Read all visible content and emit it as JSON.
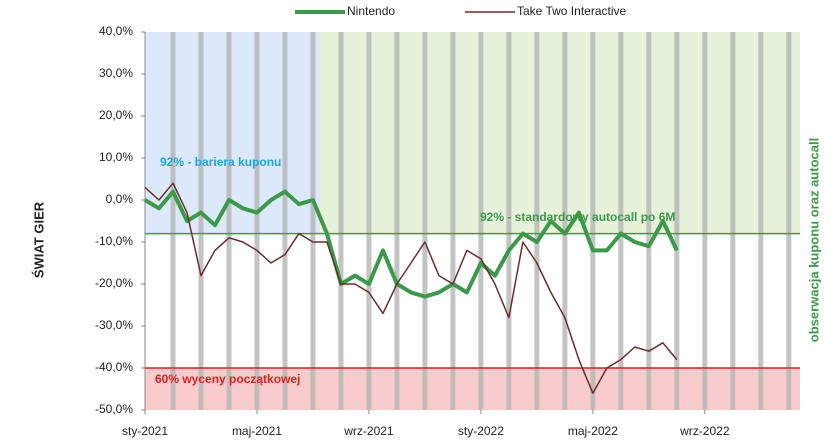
{
  "chart_data": {
    "type": "line",
    "y_axis_label": "ŚWIAT GIER",
    "y2_axis_label": "obserwacja kuponu oraz autocall",
    "annotations": [
      "92% - bariera kuponu",
      "92% - standardowy autocall po 6M",
      "60% wyceny początkowej"
    ],
    "xlim": [
      0,
      23.4
    ],
    "xticks": [
      {
        "value": 0,
        "label": "sty-2021"
      },
      {
        "value": 4,
        "label": "maj-2021"
      },
      {
        "value": 8,
        "label": "wrz-2021"
      },
      {
        "value": 12,
        "label": "sty-2022"
      },
      {
        "value": 16,
        "label": "maj-2022"
      },
      {
        "value": 20,
        "label": "wrz-2022"
      }
    ],
    "ylim": [
      -50,
      40
    ],
    "yticks": [
      {
        "value": 40,
        "label": "40,0%"
      },
      {
        "value": 30,
        "label": "30,0%"
      },
      {
        "value": 20,
        "label": "20,0%"
      },
      {
        "value": 10,
        "label": "10,0%"
      },
      {
        "value": 0,
        "label": "0,0%"
      },
      {
        "value": -10,
        "label": "-10,0%"
      },
      {
        "value": -20,
        "label": "-20,0%"
      },
      {
        "value": -30,
        "label": "-30,0%"
      },
      {
        "value": -40,
        "label": "-40,0%"
      },
      {
        "value": -50,
        "label": "-50,0%"
      }
    ],
    "bands": [
      {
        "x": [
          0,
          6.25
        ],
        "y": [
          -8,
          40
        ],
        "color": "#dce9fa"
      },
      {
        "x": [
          6.25,
          23.4
        ],
        "y": [
          -8,
          40
        ],
        "color": "#e6f2da"
      },
      {
        "x": [
          0,
          23.4
        ],
        "y": [
          -50,
          -40
        ],
        "color": "#f8cccc"
      }
    ],
    "hlines": [
      {
        "value": -8,
        "color": "#3a9a4a"
      },
      {
        "value": -40,
        "color": "#e02020"
      }
    ],
    "observation_dates": [
      1,
      2,
      3,
      4,
      5,
      6,
      7,
      8,
      9,
      10,
      11,
      12,
      13,
      14,
      15,
      16,
      17,
      18,
      19,
      20,
      21,
      22,
      23
    ],
    "x": [
      0,
      0.5,
      1,
      1.5,
      2,
      2.5,
      3,
      3.5,
      4,
      4.5,
      5,
      5.5,
      6,
      6.5,
      7,
      7.5,
      8,
      8.5,
      9,
      9.5,
      10,
      10.5,
      11,
      11.5,
      12,
      12.5,
      13,
      13.5,
      14,
      14.5,
      15,
      15.5,
      16,
      16.5,
      17,
      17.5,
      18,
      18.5,
      19
    ],
    "series": [
      {
        "name": "Nintendo",
        "color": "#3a9a4a",
        "width": 4,
        "values": [
          0,
          -2,
          2,
          -5,
          -3,
          -6,
          0,
          -2,
          -3,
          0,
          2,
          -1,
          0,
          -8,
          -20,
          -18,
          -20,
          -12,
          -20,
          -22,
          -23,
          -22,
          -20,
          -22,
          -15,
          -18,
          -12,
          -8,
          -10,
          -5,
          -8,
          -3,
          -12,
          -12,
          -8,
          -10,
          -11,
          -5,
          -12
        ]
      },
      {
        "name": "Take Two Interactive",
        "color": "#6b2e2a",
        "width": 1.5,
        "values": [
          3,
          0,
          4,
          -3,
          -18,
          -12,
          -9,
          -10,
          -12,
          -15,
          -13,
          -8,
          -10,
          -10,
          -20,
          -20,
          -22,
          -27,
          -20,
          -15,
          -10,
          -18,
          -20,
          -12,
          -14,
          -20,
          -28,
          -10,
          -15,
          -22,
          -28,
          -38,
          -46,
          -40,
          -38,
          -35,
          -36,
          -34,
          -38
        ]
      }
    ]
  }
}
